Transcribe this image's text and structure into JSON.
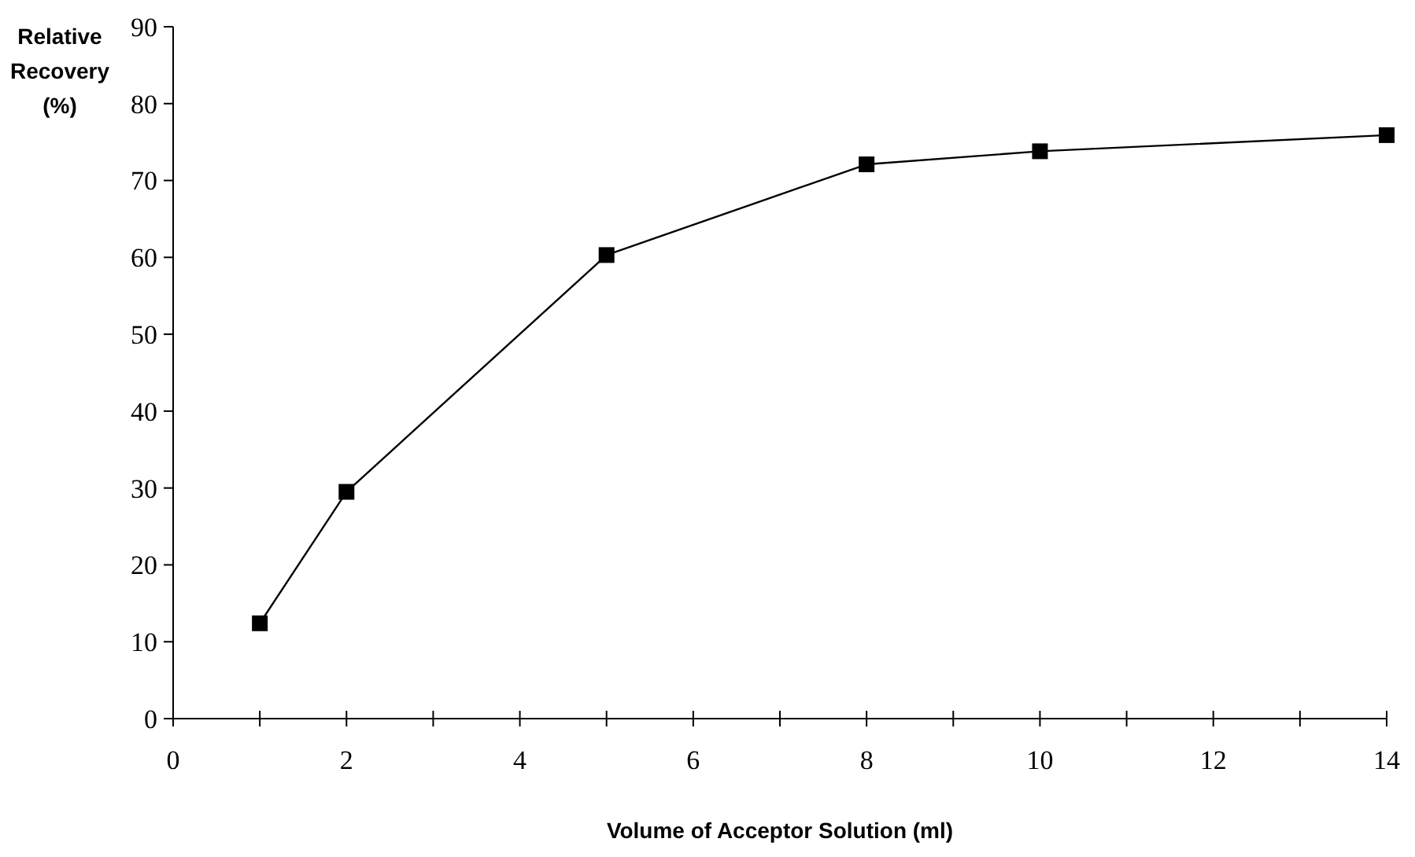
{
  "chart_data": {
    "type": "line",
    "xlabel": "Volume of Acceptor Solution (ml)",
    "ylabel": "Relative Recovery (%)",
    "x": [
      1,
      2,
      5,
      8,
      10,
      14
    ],
    "series": [
      {
        "color": "#000000",
        "values": [
          12.4,
          29.5,
          60.3,
          72.1,
          73.8,
          75.9
        ]
      }
    ],
    "xlim": [
      0,
      14
    ],
    "ylim": [
      0,
      90
    ],
    "xticks": [
      0,
      {
        "value": 1,
        "label": null
      },
      2,
      {
        "value": 3,
        "label": null
      },
      4,
      {
        "value": 5,
        "label": null
      },
      6,
      {
        "value": 7,
        "label": null
      },
      8,
      {
        "value": 9,
        "label": null
      },
      10,
      {
        "value": 11,
        "label": null
      },
      12,
      {
        "value": 13,
        "label": null
      },
      14
    ],
    "yticks": [
      0,
      10,
      20,
      30,
      40,
      50,
      60,
      70,
      80,
      90
    ],
    "marker": "square",
    "line_style": "solid",
    "grid": false
  }
}
